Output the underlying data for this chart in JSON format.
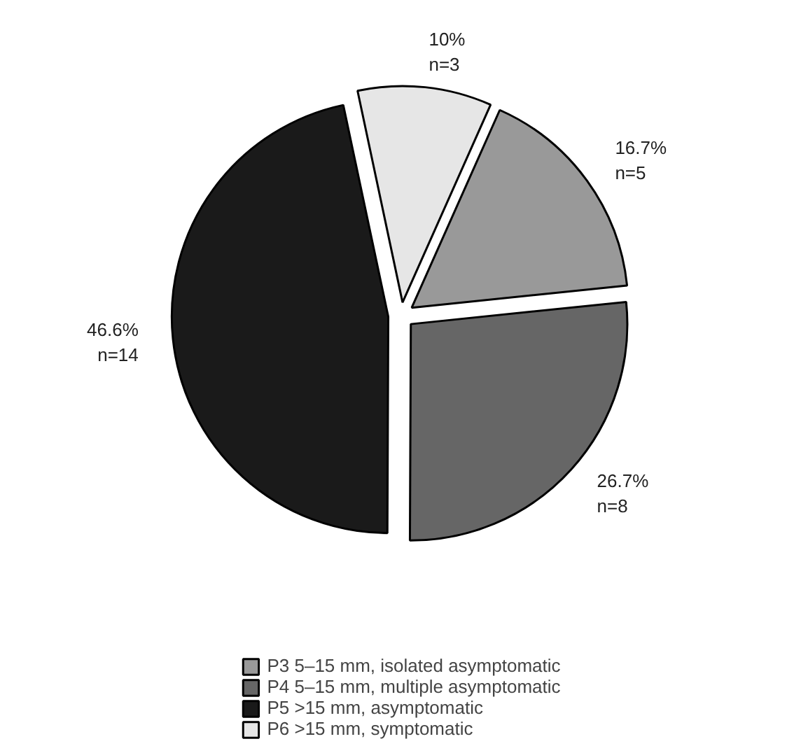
{
  "chart_data": {
    "type": "pie",
    "categories": [
      "P3 5–15 mm, isolated asymptomatic",
      "P4 5–15 mm, multiple asymptomatic",
      "P5 >15 mm, asymptomatic",
      "P6 >15 mm, symptomatic"
    ],
    "values": [
      16.7,
      26.7,
      46.6,
      10
    ],
    "colors": [
      "#999999",
      "#666666",
      "#1a1a1a",
      "#e6e6e6"
    ],
    "value_labels": [
      "16.7%\nn=5",
      "26.7%\nn=8",
      "46.6%\nn=14",
      "10%\nn=3"
    ],
    "legend": "bottom"
  }
}
